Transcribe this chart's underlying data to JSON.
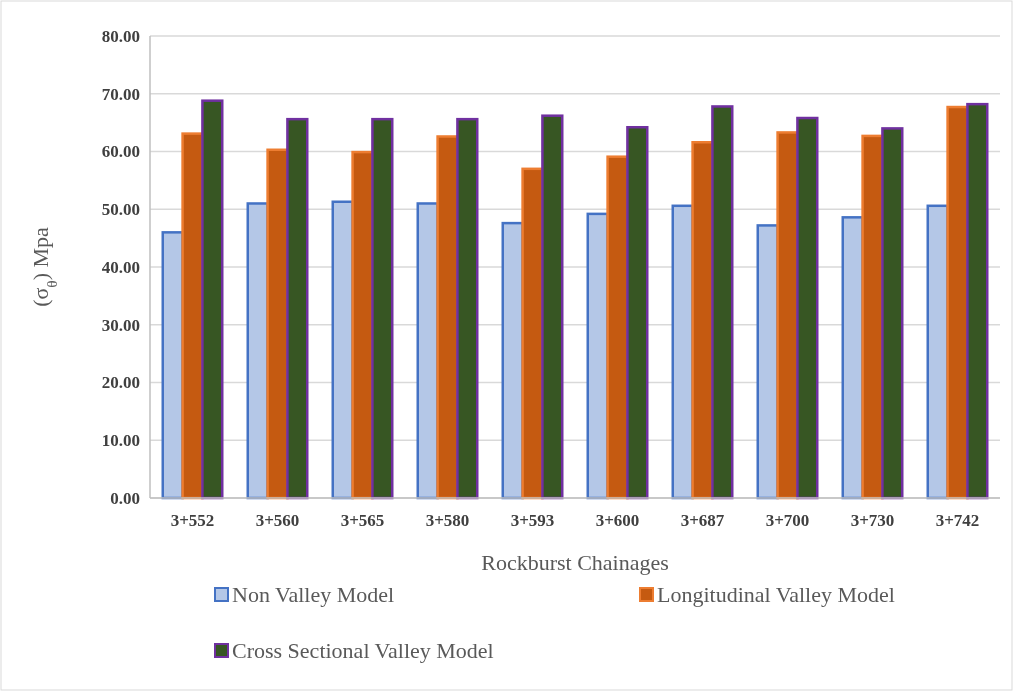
{
  "chart_data": {
    "type": "bar",
    "xlabel": "Rockburst Chainages",
    "ylabel": "(σ$_{θ}$) Mpa",
    "categories": [
      "3+552",
      "3+560",
      "3+565",
      "3+580",
      "3+593",
      "3+600",
      "3+687",
      "3+700",
      "3+730",
      "3+742"
    ],
    "series": [
      {
        "name": "Non Valley Model",
        "color": "#b4c7e7",
        "values": [
          46.0,
          51.0,
          51.3,
          51.0,
          47.6,
          49.2,
          50.6,
          47.2,
          48.6,
          50.6
        ]
      },
      {
        "name": "Longitudinal Valley Model",
        "color": "#c55a11",
        "values": [
          63.1,
          60.3,
          59.9,
          62.6,
          57.0,
          59.1,
          61.6,
          63.3,
          62.7,
          67.7
        ]
      },
      {
        "name": "Cross Sectional Valley Model",
        "color": "#375623",
        "values": [
          68.8,
          65.6,
          65.6,
          65.6,
          66.2,
          64.2,
          67.8,
          65.8,
          64.0,
          68.2
        ]
      }
    ],
    "ylim": [
      0,
      80
    ],
    "yticks": [
      {
        "value": 0,
        "label": "0.00"
      },
      {
        "value": 10,
        "label": "10.00"
      },
      {
        "value": 20,
        "label": "20.00"
      },
      {
        "value": 30,
        "label": "30.00"
      },
      {
        "value": 40,
        "label": "40.00"
      },
      {
        "value": 50,
        "label": "50.00"
      },
      {
        "value": 60,
        "label": "60.00"
      },
      {
        "value": 70,
        "label": "70.00"
      },
      {
        "value": 80,
        "label": "80.00"
      }
    ],
    "grid": "y",
    "legend": "bottom"
  }
}
